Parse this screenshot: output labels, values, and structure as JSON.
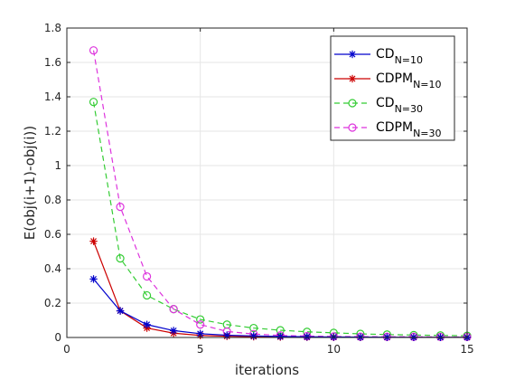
{
  "chart_data": {
    "type": "line",
    "xlabel": "iterations",
    "ylabel": "E(obj(i+1)-obj(i))",
    "xlim": [
      0,
      15
    ],
    "ylim": [
      0,
      1.8
    ],
    "xticks": [
      0,
      5,
      10,
      15
    ],
    "yticks": [
      0,
      0.2,
      0.4,
      0.6,
      0.8,
      1,
      1.2,
      1.4,
      1.6,
      1.8
    ],
    "xtick_labels": [
      "0",
      "5",
      "10",
      "15"
    ],
    "ytick_labels": [
      "0",
      "0.2",
      "0.4",
      "0.6",
      "0.8",
      "1",
      "1.2",
      "1.4",
      "1.6",
      "1.8"
    ],
    "grid": true,
    "legend_position": "top-right",
    "series": [
      {
        "name": "CD",
        "name_sub": "N=10",
        "color": "#0000cc",
        "line": "solid",
        "marker": "asterisk",
        "x": [
          1,
          2,
          3,
          4,
          5,
          6,
          7,
          8,
          9,
          10,
          11,
          12,
          13,
          14,
          15
        ],
        "y": [
          0.34,
          0.155,
          0.075,
          0.04,
          0.022,
          0.013,
          0.009,
          0.006,
          0.004,
          0.003,
          0.002,
          0.0015,
          0.001,
          0.001,
          0.001
        ]
      },
      {
        "name": "CDPM",
        "name_sub": "N=10",
        "color": "#cc0000",
        "line": "solid",
        "marker": "asterisk",
        "x": [
          1,
          2,
          3,
          4,
          5,
          6,
          7,
          8,
          9,
          10,
          11,
          12,
          13,
          14,
          15
        ],
        "y": [
          0.56,
          0.155,
          0.055,
          0.025,
          0.012,
          0.007,
          0.005,
          0.003,
          0.002,
          0.0015,
          0.001,
          0.001,
          0.001,
          0.001,
          0.001
        ]
      },
      {
        "name": "CD",
        "name_sub": "N=30",
        "color": "#33cc33",
        "line": "dashed",
        "marker": "circle",
        "x": [
          1,
          2,
          3,
          4,
          5,
          6,
          7,
          8,
          9,
          10,
          11,
          12,
          13,
          14,
          15
        ],
        "y": [
          1.37,
          0.46,
          0.245,
          0.165,
          0.105,
          0.075,
          0.055,
          0.042,
          0.033,
          0.027,
          0.021,
          0.017,
          0.014,
          0.012,
          0.01
        ]
      },
      {
        "name": "CDPM",
        "name_sub": "N=30",
        "color": "#dd33dd",
        "line": "dashed",
        "marker": "circle",
        "x": [
          1,
          2,
          3,
          4,
          5,
          6,
          7,
          8,
          9,
          10,
          11,
          12,
          13,
          14,
          15
        ],
        "y": [
          1.67,
          0.76,
          0.355,
          0.165,
          0.075,
          0.035,
          0.02,
          0.012,
          0.008,
          0.006,
          0.005,
          0.004,
          0.004,
          0.003,
          0.003
        ]
      }
    ]
  }
}
